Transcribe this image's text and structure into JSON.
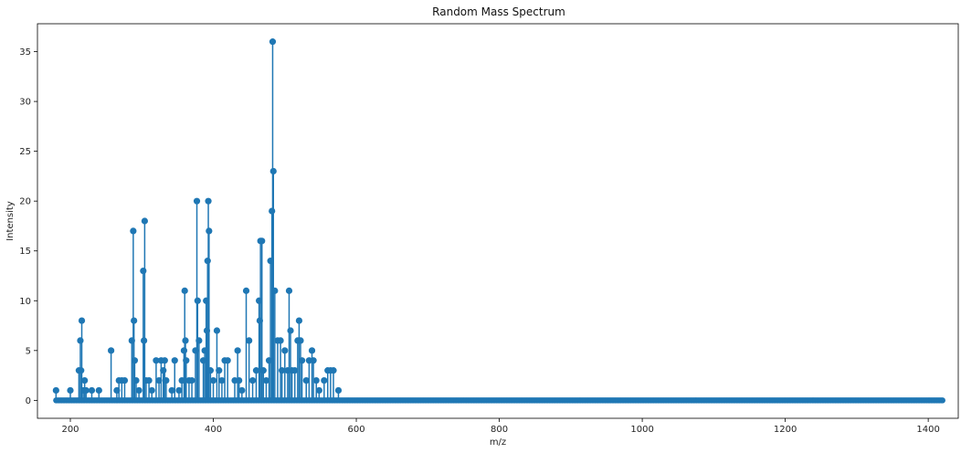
{
  "chart_data": {
    "type": "stem",
    "title": "Random Mass Spectrum",
    "xlabel": "m/z",
    "ylabel": "Intensity",
    "xlim": [
      154,
      1442
    ],
    "ylim": [
      -1.8,
      37.8
    ],
    "xticks": [
      200,
      400,
      600,
      800,
      1000,
      1200,
      1400
    ],
    "yticks": [
      0,
      5,
      10,
      15,
      20,
      25,
      30,
      35
    ],
    "grid": false,
    "legend": "none",
    "colors": {
      "stem": "#1f77b4",
      "baseline": "#d62728"
    },
    "baseline": {
      "value": 0,
      "x_start": 180,
      "x_end": 1420
    },
    "points": [
      [
        180,
        1
      ],
      [
        200,
        1
      ],
      [
        212,
        3
      ],
      [
        214,
        6
      ],
      [
        215,
        3
      ],
      [
        216,
        8
      ],
      [
        218,
        1
      ],
      [
        220,
        2
      ],
      [
        222,
        1
      ],
      [
        230,
        1
      ],
      [
        240,
        1
      ],
      [
        257,
        5
      ],
      [
        265,
        1
      ],
      [
        268,
        2
      ],
      [
        272,
        2
      ],
      [
        276,
        2
      ],
      [
        286,
        6
      ],
      [
        288,
        17
      ],
      [
        289,
        8
      ],
      [
        290,
        4
      ],
      [
        292,
        2
      ],
      [
        296,
        1
      ],
      [
        302,
        13
      ],
      [
        303,
        6
      ],
      [
        304,
        18
      ],
      [
        306,
        2
      ],
      [
        310,
        2
      ],
      [
        314,
        1
      ],
      [
        320,
        4
      ],
      [
        324,
        2
      ],
      [
        327,
        4
      ],
      [
        330,
        3
      ],
      [
        332,
        4
      ],
      [
        334,
        2
      ],
      [
        342,
        1
      ],
      [
        346,
        4
      ],
      [
        352,
        1
      ],
      [
        356,
        2
      ],
      [
        359,
        5
      ],
      [
        360,
        11
      ],
      [
        361,
        6
      ],
      [
        362,
        4
      ],
      [
        366,
        2
      ],
      [
        370,
        2
      ],
      [
        375,
        5
      ],
      [
        377,
        20
      ],
      [
        378,
        10
      ],
      [
        380,
        6
      ],
      [
        386,
        4
      ],
      [
        388,
        5
      ],
      [
        390,
        10
      ],
      [
        391,
        7
      ],
      [
        392,
        14
      ],
      [
        393,
        20
      ],
      [
        394,
        17
      ],
      [
        396,
        3
      ],
      [
        400,
        2
      ],
      [
        405,
        7
      ],
      [
        408,
        3
      ],
      [
        412,
        2
      ],
      [
        416,
        4
      ],
      [
        420,
        4
      ],
      [
        430,
        2
      ],
      [
        434,
        5
      ],
      [
        436,
        2
      ],
      [
        440,
        1
      ],
      [
        446,
        11
      ],
      [
        450,
        6
      ],
      [
        455,
        2
      ],
      [
        460,
        3
      ],
      [
        464,
        10
      ],
      [
        465,
        8
      ],
      [
        466,
        16
      ],
      [
        468,
        16
      ],
      [
        470,
        3
      ],
      [
        474,
        2
      ],
      [
        478,
        4
      ],
      [
        480,
        14
      ],
      [
        482,
        19
      ],
      [
        483,
        36
      ],
      [
        484,
        23
      ],
      [
        486,
        11
      ],
      [
        490,
        6
      ],
      [
        494,
        6
      ],
      [
        496,
        3
      ],
      [
        500,
        5
      ],
      [
        504,
        3
      ],
      [
        506,
        11
      ],
      [
        508,
        7
      ],
      [
        510,
        3
      ],
      [
        514,
        3
      ],
      [
        518,
        6
      ],
      [
        520,
        8
      ],
      [
        522,
        6
      ],
      [
        524,
        4
      ],
      [
        530,
        2
      ],
      [
        534,
        4
      ],
      [
        538,
        5
      ],
      [
        540,
        4
      ],
      [
        544,
        2
      ],
      [
        548,
        1
      ],
      [
        555,
        2
      ],
      [
        560,
        3
      ],
      [
        564,
        3
      ],
      [
        568,
        3
      ],
      [
        575,
        1
      ]
    ]
  }
}
